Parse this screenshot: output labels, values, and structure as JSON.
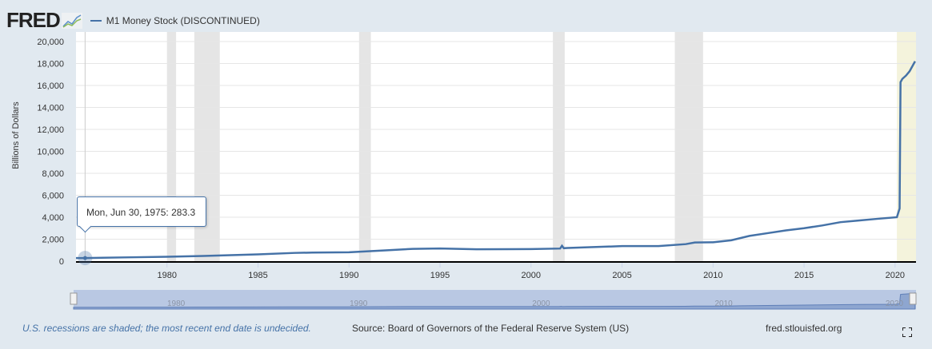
{
  "header": {
    "logo": "FRED",
    "logo_icon": "line-chart-icon"
  },
  "chart_data": {
    "type": "line",
    "title": "",
    "ylabel": "Billions of Dollars",
    "xlabel": "",
    "ylim": [
      0,
      20000
    ],
    "xlim": [
      1975.0,
      2021.15
    ],
    "yticks": [
      "0",
      "2,000",
      "4,000",
      "6,000",
      "8,000",
      "10,000",
      "12,000",
      "14,000",
      "16,000",
      "18,000",
      "20,000"
    ],
    "xticks": [
      "1980",
      "1985",
      "1990",
      "1995",
      "2000",
      "2005",
      "2010",
      "2015",
      "2020"
    ],
    "grid": true,
    "legend_position": "top-left",
    "series": [
      {
        "name": "M1 Money Stock (DISCONTINUED)",
        "color": "#4572a7",
        "x": [
          1975.0,
          1975.5,
          1978,
          1980,
          1982,
          1985,
          1987,
          1988,
          1990,
          1992,
          1993.5,
          1995,
          1997,
          2000,
          2001.6,
          2001.7,
          2001.8,
          2002,
          2005,
          2007,
          2008.5,
          2009,
          2010,
          2011,
          2011.5,
          2012,
          2013,
          2014,
          2015,
          2016,
          2017,
          2018,
          2019,
          2020.1,
          2020.25,
          2020.3,
          2020.4,
          2020.6,
          2020.8,
          2021.1
        ],
        "y": [
          280,
          283.3,
          350,
          400,
          470,
          620,
          750,
          780,
          810,
          980,
          1120,
          1150,
          1080,
          1100,
          1150,
          1400,
          1180,
          1200,
          1370,
          1370,
          1550,
          1700,
          1720,
          1900,
          2100,
          2300,
          2550,
          2800,
          3000,
          3250,
          3550,
          3700,
          3850,
          4000,
          4800,
          16300,
          16600,
          16900,
          17300,
          18200
        ]
      }
    ],
    "recessions": [
      [
        1980.0,
        1980.5
      ],
      [
        1981.5,
        1982.9
      ],
      [
        1990.55,
        1991.2
      ],
      [
        2001.2,
        2001.85
      ],
      [
        2007.9,
        2009.45
      ]
    ],
    "recent_recession": [
      2020.1,
      2021.15
    ],
    "navigator_ticks": [
      "1980",
      "1990",
      "2000",
      "2010",
      "2020"
    ]
  },
  "tooltip": {
    "date": "Mon, Jun 30, 1975:",
    "value": "283.3"
  },
  "footer": {
    "note": "U.S. recessions are shaded; the most recent end date is undecided.",
    "source": "Source: Board of Governors of the Federal Reserve System (US)",
    "site": "fred.stlouisfed.org",
    "fullscreen_icon": "fullscreen-icon"
  }
}
